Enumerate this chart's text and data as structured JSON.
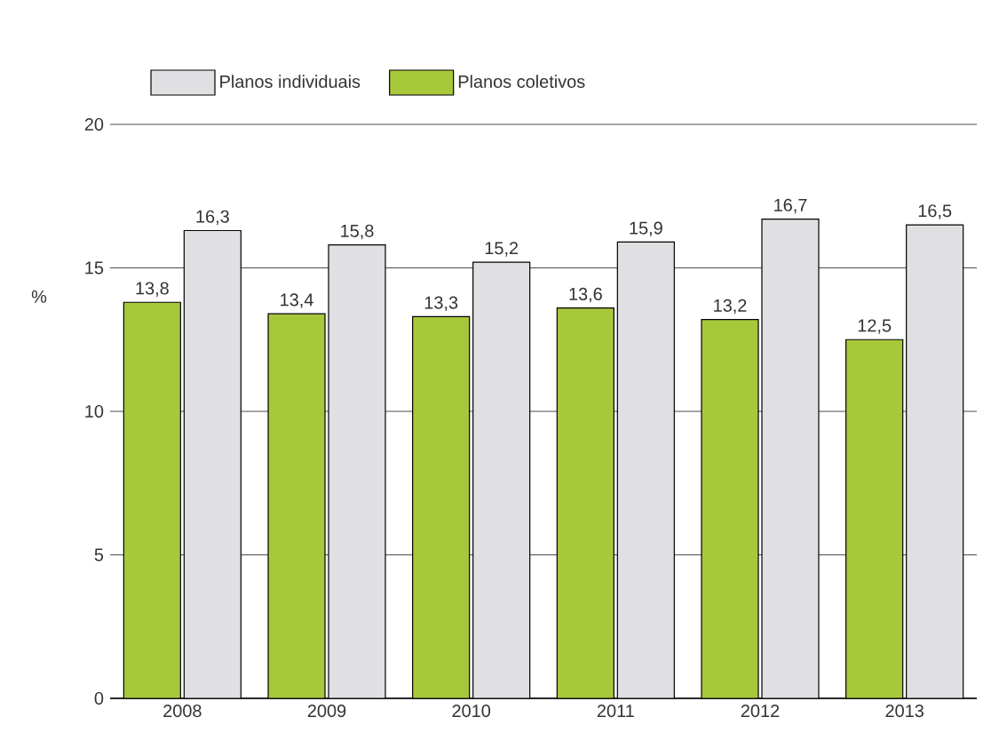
{
  "chart_data": {
    "type": "bar",
    "ylabel": "%",
    "categories": [
      "2008",
      "2009",
      "2010",
      "2011",
      "2012",
      "2013"
    ],
    "series": [
      {
        "name": "Planos coletivos",
        "color": "#a8c83c",
        "values": [
          13.8,
          13.4,
          13.3,
          13.6,
          13.2,
          12.5
        ],
        "value_labels": [
          "13,8",
          "13,4",
          "13,3",
          "13,6",
          "13,2",
          "12,5"
        ]
      },
      {
        "name": "Planos individuais",
        "color": "#e0e0e2",
        "values": [
          16.3,
          15.8,
          15.2,
          15.9,
          16.7,
          16.5
        ],
        "value_labels": [
          "16,3",
          "15,8",
          "15,2",
          "15,9",
          "16,7",
          "16,5"
        ]
      }
    ],
    "ylim": [
      0,
      20
    ],
    "yticks": [
      0,
      5,
      10,
      15,
      20
    ],
    "grid": "y",
    "legend": "top"
  }
}
